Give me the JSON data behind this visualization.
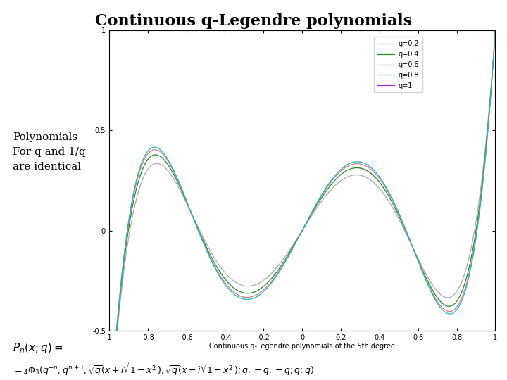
{
  "title": "Continuous q-Legendre polynomials",
  "subtitle": "Polynomials\nFor q and 1/q\nare identical",
  "xlabel": "Continuous q-Legendre polynomials of the 5th degree",
  "q_values": [
    0.2,
    0.4,
    0.6,
    0.8,
    1.0
  ],
  "colors": [
    "#aaaaaa",
    "#228B22",
    "#cd8080",
    "#20b2cc",
    "#9932cc"
  ],
  "ylim": [
    -0.5,
    1.0
  ],
  "xlim": [
    -1.0,
    1.0
  ],
  "n_points": 3000,
  "degree": 5,
  "background_color": "#ffffff",
  "title_fontsize": 16,
  "subtitle_fontsize": 11,
  "legend_labels": [
    "q=0.2",
    "q=0.4",
    "q=0.6",
    "q=0.8",
    "q=1"
  ],
  "yticks": [
    -0.5,
    0,
    0.5,
    1
  ],
  "xticks": [
    -1,
    -0.8,
    -0.6,
    -0.4,
    -0.2,
    0,
    0.2,
    0.4,
    0.6,
    0.8,
    1
  ]
}
